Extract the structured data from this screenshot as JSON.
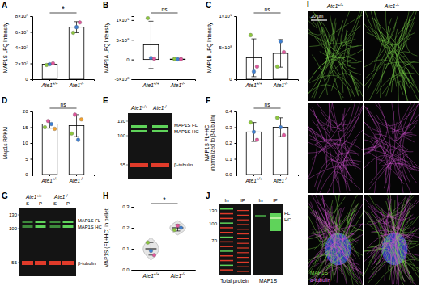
{
  "chart_data": [
    {
      "type": "bar",
      "panel": "A",
      "ylabel": "MAP1S LFQ Intensity",
      "categories": [
        "Ate1+/+",
        "Ate1-/-"
      ],
      "values": [
        19000000,
        66000000
      ],
      "errors": [
        1000000,
        7000000
      ],
      "points": [
        [
          18000000,
          19000000,
          20000000
        ],
        [
          59000000,
          66000000,
          72000000
        ]
      ],
      "point_colors": [
        [
          "#8dc63f",
          "#3f7fd0",
          "#e0569b"
        ],
        [
          "#8dc63f",
          "#3f7fd0",
          "#e0569b"
        ]
      ],
      "color": "#ffffff",
      "annotation": "*",
      "ylim": [
        0,
        80000000
      ],
      "yticks": [
        0,
        {
          "value": 20000000,
          "label": "2×10⁷"
        },
        {
          "value": 40000000,
          "label": "4×10⁷"
        },
        {
          "value": 60000000,
          "label": "6×10⁷"
        },
        {
          "value": 80000000,
          "label": "8×10⁷"
        }
      ]
    },
    {
      "type": "bar",
      "panel": "B",
      "ylabel": "MAP1A LFQ Intensity",
      "categories": [
        "Ate1+/+",
        "Ate1-/-"
      ],
      "values": [
        370000000,
        10000000
      ],
      "errors": [
        600000000,
        8000000
      ],
      "points": [
        [
          1050000000,
          40000000,
          20000000
        ],
        [
          15000000,
          5000000,
          10000000
        ]
      ],
      "point_colors": [
        [
          "#8dc63f",
          "#3f7fd0",
          "#e0569b"
        ],
        [
          "#8dc63f",
          "#3f7fd0",
          "#e0569b"
        ]
      ],
      "color": "#ffffff",
      "annotation": "ns",
      "ylim": [
        -500000000,
        1100000000
      ],
      "yticks": [
        {
          "value": -500000000,
          "label": "-5×10⁸"
        },
        0,
        {
          "value": 500000000,
          "label": "5×10⁸"
        },
        {
          "value": 1000000000,
          "label": "1×10⁹"
        }
      ]
    },
    {
      "type": "bar",
      "panel": "C",
      "ylabel": "MAP1B LFQ Intensity",
      "categories": [
        "Ate1+/+",
        "Ate1-/-"
      ],
      "values": [
        340000000,
        410000000
      ],
      "errors": [
        300000000,
        220000000
      ],
      "points": [
        [
          700000000,
          120000000,
          200000000
        ],
        [
          200000000,
          600000000,
          430000000
        ]
      ],
      "point_colors": [
        [
          "#8dc63f",
          "#3f7fd0",
          "#e0569b"
        ],
        [
          "#8dc63f",
          "#3f7fd0",
          "#e0569b"
        ]
      ],
      "color": "#ffffff",
      "annotation": "ns",
      "ylim": [
        0,
        1000000000
      ],
      "yticks": [
        0,
        {
          "value": 500000000,
          "label": "5×10⁸"
        },
        {
          "value": 1000000000,
          "label": "1×10⁹"
        }
      ]
    },
    {
      "type": "bar",
      "panel": "D",
      "ylabel": "Map1s RPKM",
      "categories": [
        "Ate1+/+",
        "Ate1-/-"
      ],
      "values": [
        16,
        15.5
      ],
      "errors": [
        1.3,
        3.5
      ],
      "points": [
        [
          15,
          17,
          16,
          14.5
        ],
        [
          13,
          19,
          11,
          17.5
        ]
      ],
      "point_colors": [
        [
          "#8dc63f",
          "#e0569b",
          "#3f7fd0",
          "#f0a030"
        ],
        [
          "#8dc63f",
          "#e0569b",
          "#3f7fd0",
          "#f0a030"
        ]
      ],
      "color": "#ffffff",
      "annotation": "ns",
      "ylim": [
        0,
        20
      ],
      "yticks": [
        0,
        5,
        10,
        15,
        20
      ]
    },
    {
      "type": "bar",
      "panel": "F",
      "ylabel": [
        "MAP1S FL+HC",
        "(normalized to β-tubulin)"
      ],
      "categories": [
        "Ate1+/+",
        "Ate1-/-"
      ],
      "values": [
        0.27,
        0.3
      ],
      "errors": [
        0.06,
        0.06
      ],
      "points": [
        [
          0.33,
          0.27,
          0.22
        ],
        [
          0.36,
          0.3,
          0.25
        ]
      ],
      "point_colors": [
        [
          "#8dc63f",
          "#3f7fd0",
          "#e0569b"
        ],
        [
          "#8dc63f",
          "#3f7fd0",
          "#e0569b"
        ]
      ],
      "color": "#ffffff",
      "annotation": "ns",
      "ylim": [
        0,
        0.4
      ],
      "yticks": [
        {
          "value": 0,
          "label": "0.0"
        },
        0.1,
        0.2,
        0.3,
        0.4
      ]
    },
    {
      "type": "violin",
      "panel": "H",
      "ylabel": "MAP1S (FL+HC) in pellet",
      "categories": [
        "Ate1+/+",
        "Ate1-/-"
      ],
      "values": [
        0.1,
        0.2
      ],
      "errors": [
        0.03,
        0.015
      ],
      "points": [
        [
          0.13,
          0.09,
          0.07
        ],
        [
          0.19,
          0.21,
          0.2
        ]
      ],
      "point_colors": [
        [
          "#8dc63f",
          "#3f7fd0",
          "#e0569b"
        ],
        [
          "#8dc63f",
          "#e0569b",
          "#3f7fd0"
        ]
      ],
      "color": "#e6e6e6",
      "annotation": "*",
      "ylim": [
        0,
        0.3
      ],
      "yticks": [
        {
          "value": 0,
          "label": "0.0"
        },
        0.1,
        0.2,
        0.3
      ]
    }
  ],
  "blots": [
    {
      "panel": "E",
      "lanes": [
        "Ate1+/+",
        "Ate1-/-"
      ],
      "mw": [
        130,
        100,
        55
      ],
      "bands": [
        "MAP1S FL",
        "MAP1S HC",
        "β-tubulin"
      ]
    },
    {
      "panel": "G",
      "groups": [
        "Ate1+/+",
        "Ate1-/-"
      ],
      "lanes": [
        "S",
        "P",
        "S",
        "P"
      ],
      "mw": [
        130,
        100,
        55
      ],
      "bands": [
        "MAP1S FL",
        "MAP1S HC",
        "β-tubulin"
      ]
    },
    {
      "panel": "J",
      "lanes": [
        "In",
        "IP",
        "In",
        "IP"
      ],
      "mw": [
        130,
        100,
        70
      ],
      "bands": [
        "FL",
        "HC"
      ],
      "blots": [
        "Total protein",
        "MAP1S"
      ]
    }
  ],
  "images": {
    "panel": "I",
    "columns": [
      "Ate1+/+",
      "Ate1-/-"
    ],
    "scale_bar": "20 μm",
    "channels": [
      "MAP1S",
      "α-tubulin"
    ]
  }
}
